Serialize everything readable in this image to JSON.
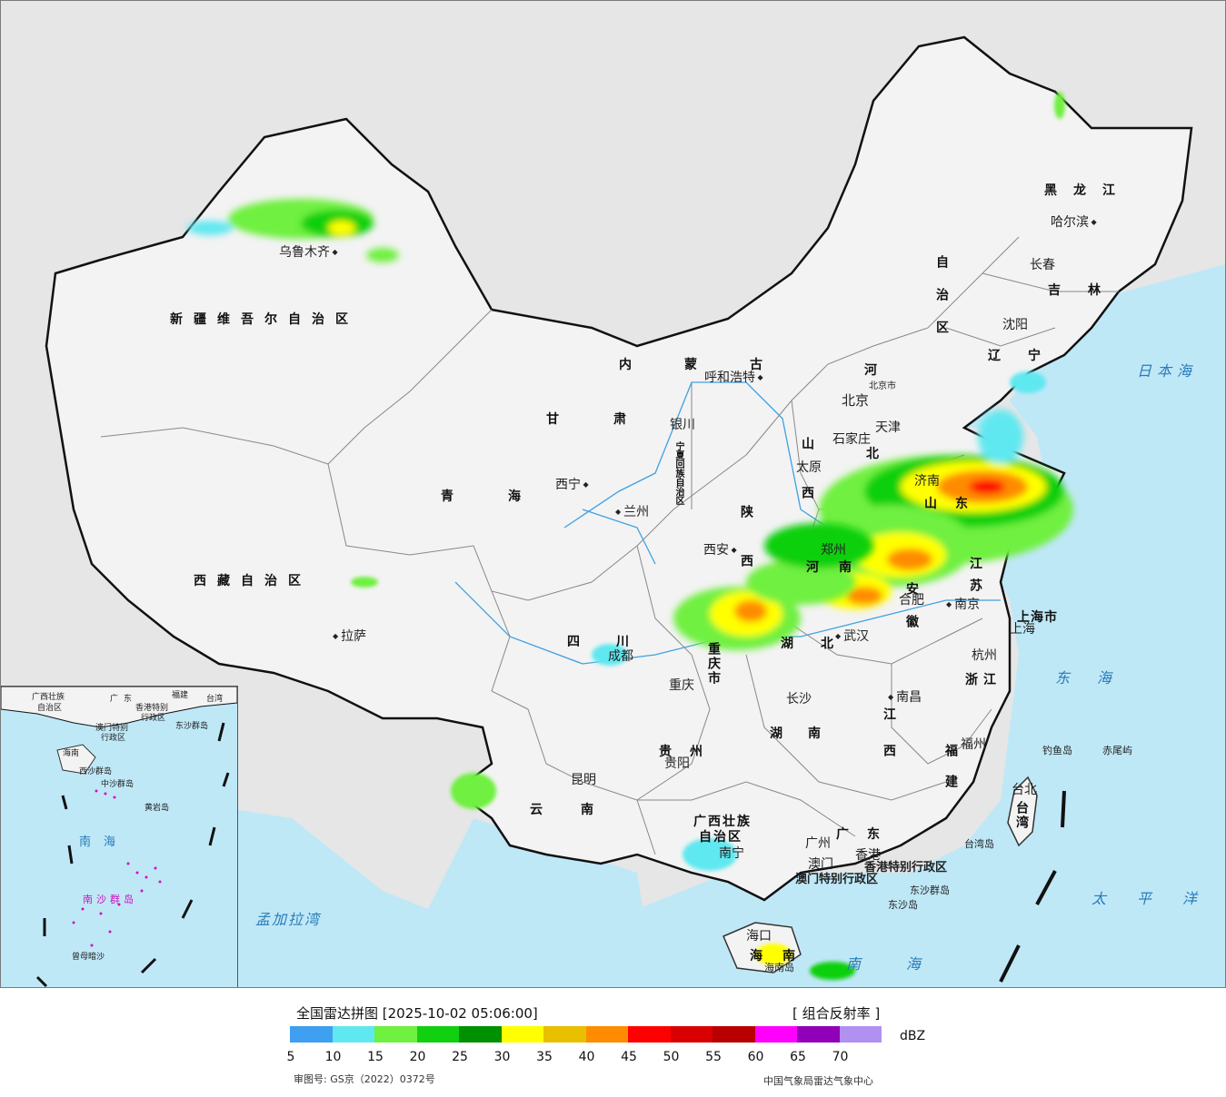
{
  "legend": {
    "title": "全国雷达拼图 [2025-10-02 05:06:00]",
    "product": "[ 组合反射率 ]",
    "unit": "dBZ",
    "colors": [
      "#3f9ff0",
      "#60e8f0",
      "#70f040",
      "#10d010",
      "#009000",
      "#ffff00",
      "#e8c000",
      "#ff8c00",
      "#ff0000",
      "#d80000",
      "#b80000",
      "#ff00ff",
      "#9000b8",
      "#b090f0"
    ],
    "ticks": [
      "5",
      "10",
      "15",
      "20",
      "25",
      "30",
      "35",
      "40",
      "45",
      "50",
      "55",
      "60",
      "65",
      "70"
    ],
    "review_number": "审图号: GS京（2022）0372号",
    "agency": "中国气象局雷达气象中心"
  },
  "provinces": {
    "xinjiang": "新疆维吾尔自治区",
    "xizang": "西藏自治区",
    "qinghai": "青海",
    "gansu": "甘肃",
    "neimenggu_1": "内蒙古",
    "neimenggu_2": "自治区",
    "heilongjiang": "黑龙江",
    "jilin": "吉林",
    "liaoning": "辽宁",
    "hebei_1": "河",
    "hebei_2": "北",
    "shanxi": "山西",
    "shaanxi": "陕西",
    "shandong": "山东",
    "henan": "河南",
    "jiangsu": "江苏",
    "anhui": "安徽",
    "hubei": "湖北",
    "sichuan": "四川",
    "chongqing": "重庆市",
    "guizhou": "贵州",
    "yunnan": "云南",
    "hunan": "湖南",
    "jiangxi": "江西",
    "zhejiang": "浙江",
    "fujian": "福建",
    "guangdong": "广东",
    "guangxi_1": "广西壮族",
    "guangxi_2": "自治区",
    "taiwan": "台湾",
    "hainan": "海南",
    "shanghai": "上海市",
    "ningxia": "宁夏回族自治区",
    "hongkong": "香港特别行政区",
    "macau": "澳门特别行政区"
  },
  "cities": {
    "urumqi": "乌鲁木齐",
    "lhasa": "拉萨",
    "xining": "西宁",
    "lanzhou": "兰州",
    "yinchuan": "银川",
    "hohhot": "呼和浩特",
    "beijing": "北京",
    "beijing_small": "北京市",
    "tianjin": "天津",
    "shijiazhuang": "石家庄",
    "taiyuan": "太原",
    "xian": "西安",
    "zhengzhou": "郑州",
    "jinan": "济南",
    "hefei": "合肥",
    "nanjing": "南京",
    "shanghai": "上海",
    "hangzhou": "杭州",
    "wuhan": "武汉",
    "changsha": "长沙",
    "nanchang": "南昌",
    "fuzhou": "福州",
    "taipei": "台北",
    "chengdu": "成都",
    "chongqing": "重庆",
    "guiyang": "贵阳",
    "kunming": "昆明",
    "nanning": "南宁",
    "guangzhou": "广州",
    "macau": "澳门",
    "hongkong": "香港",
    "haikou": "海口",
    "harbin": "哈尔滨",
    "changchun": "长春",
    "shenyang": "沈阳"
  },
  "seas": {
    "japan_sea": "日本海",
    "east_sea": "东海",
    "south_sea": "南海",
    "pacific": "太平洋",
    "bengal": "孟加拉湾"
  },
  "islands": {
    "diaoyu": "钓鱼岛",
    "chiwei": "赤尾屿",
    "taiwan_island": "台湾岛",
    "dongsha_islands": "东沙群岛",
    "dongsha_island": "东沙岛",
    "hainan_island": "海南岛"
  },
  "inset": {
    "guangxi": "广西壮族",
    "guangxi2": "自治区",
    "guangdong": "广东",
    "fujian": "福建",
    "taiwan": "台湾",
    "hk": "香港特别",
    "hk2": "行政区",
    "macau": "澳门特别",
    "macau2": "行政区",
    "dongsha": "东沙群岛",
    "xisha": "西沙群岛",
    "zhongsha": "中沙群岛",
    "huangyan": "黄岩岛",
    "south_sea": "南海",
    "nansha": "南沙群岛",
    "hainan": "海南",
    "zengmu": "曾母暗沙"
  }
}
